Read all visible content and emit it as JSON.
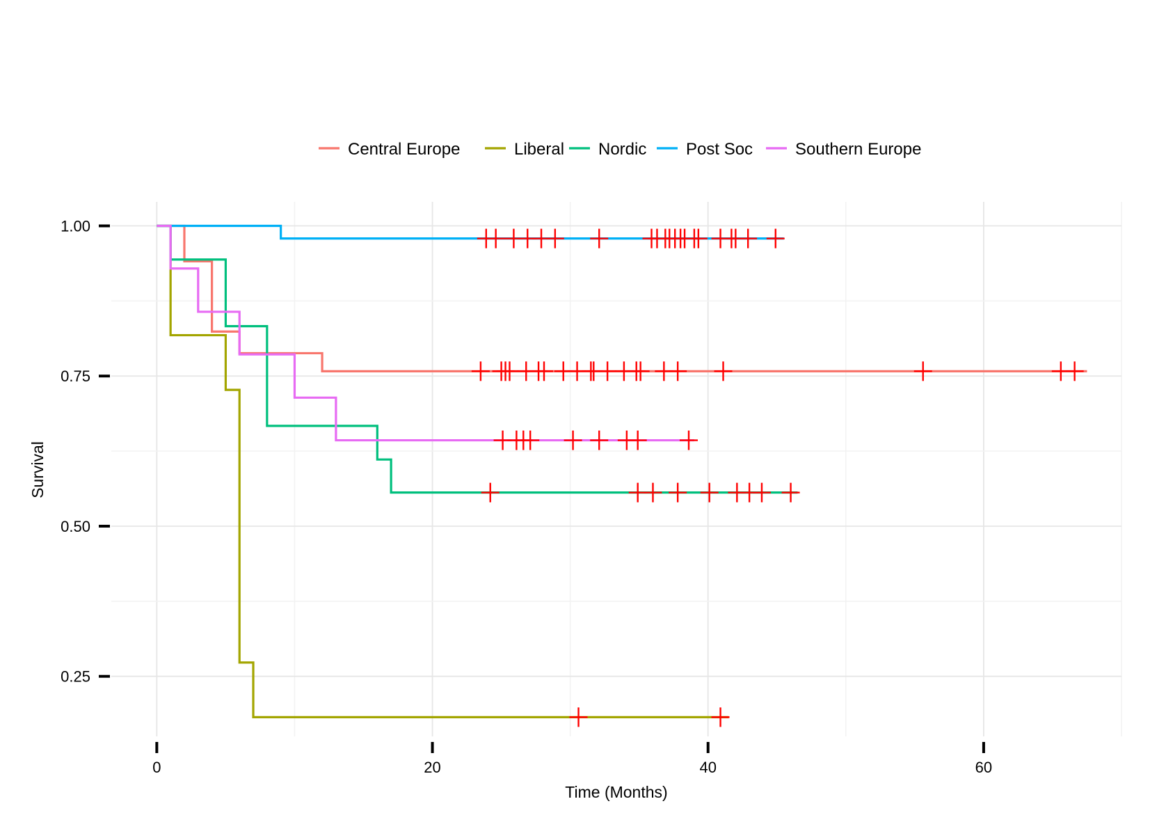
{
  "chart_data": {
    "type": "line",
    "subtype": "kaplan-meier step",
    "title": "",
    "xlabel": "Time (Months)",
    "ylabel": "Survival",
    "xlim": [
      -3.3,
      70
    ],
    "ylim": [
      0.15,
      1.04
    ],
    "x_ticks": [
      0,
      20,
      40,
      60
    ],
    "x_tick_labels": [
      "0",
      "20",
      "40",
      "60"
    ],
    "y_ticks": [
      0.25,
      0.5,
      0.75,
      1.0
    ],
    "y_tick_labels": [
      "0.25",
      "0.50",
      "0.75",
      "1.00"
    ],
    "grid": true,
    "legend_position": "top",
    "censor_mark_color": "#FF0000",
    "series": [
      {
        "name": "Central Europe",
        "color": "#F8766D",
        "steps": [
          [
            0,
            1.0
          ],
          [
            2,
            0.941
          ],
          [
            3,
            0.941
          ],
          [
            4,
            0.882
          ],
          [
            4,
            0.824
          ],
          [
            6,
            0.824
          ],
          [
            6,
            0.788
          ],
          [
            12,
            0.788
          ],
          [
            12,
            0.758
          ],
          [
            67.5,
            0.758
          ]
        ],
        "censored": [
          23.5,
          25.0,
          25.3,
          25.6,
          26.8,
          27.7,
          28.1,
          29.5,
          30.5,
          31.5,
          31.7,
          32.7,
          33.9,
          34.8,
          35.1,
          36.8,
          37.8,
          41.1,
          55.6,
          65.6,
          66.6
        ]
      },
      {
        "name": "Liberal",
        "color": "#A3A500",
        "steps": [
          [
            0,
            1.0
          ],
          [
            1,
            0.818
          ],
          [
            5,
            0.818
          ],
          [
            5,
            0.727
          ],
          [
            6,
            0.727
          ],
          [
            6,
            0.273
          ],
          [
            7,
            0.273
          ],
          [
            7,
            0.182
          ],
          [
            41.5,
            0.182
          ]
        ],
        "censored": [
          30.6,
          40.9
        ]
      },
      {
        "name": "Nordic",
        "color": "#00BF7D",
        "steps": [
          [
            0,
            1.0
          ],
          [
            1,
            0.944
          ],
          [
            5,
            0.944
          ],
          [
            5,
            0.833
          ],
          [
            8,
            0.833
          ],
          [
            8,
            0.667
          ],
          [
            16,
            0.667
          ],
          [
            16,
            0.611
          ],
          [
            17,
            0.611
          ],
          [
            17,
            0.556
          ],
          [
            46.5,
            0.556
          ]
        ],
        "censored": [
          24.2,
          34.9,
          36.0,
          37.8,
          40.1,
          42.1,
          43.0,
          43.9,
          46.0
        ]
      },
      {
        "name": "Post Soc",
        "color": "#00B0F6",
        "steps": [
          [
            0,
            1.0
          ],
          [
            9,
            1.0
          ],
          [
            9,
            0.979
          ],
          [
            45.5,
            0.979
          ]
        ],
        "censored": [
          23.9,
          24.6,
          25.9,
          26.9,
          27.9,
          28.9,
          32.1,
          35.9,
          36.3,
          36.9,
          37.2,
          37.6,
          38.0,
          38.3,
          39.0,
          39.3,
          40.9,
          41.7,
          42.0,
          42.9,
          44.9
        ]
      },
      {
        "name": "Southern Europe",
        "color": "#E76BF3",
        "steps": [
          [
            0,
            1.0
          ],
          [
            1,
            0.929
          ],
          [
            3,
            0.929
          ],
          [
            3,
            0.857
          ],
          [
            6,
            0.857
          ],
          [
            6,
            0.786
          ],
          [
            10,
            0.786
          ],
          [
            10,
            0.714
          ],
          [
            13,
            0.714
          ],
          [
            13,
            0.643
          ],
          [
            39,
            0.643
          ]
        ],
        "censored": [
          25.1,
          26.1,
          26.6,
          27.1,
          30.2,
          32.1,
          34.1,
          34.9,
          38.6
        ]
      }
    ]
  }
}
